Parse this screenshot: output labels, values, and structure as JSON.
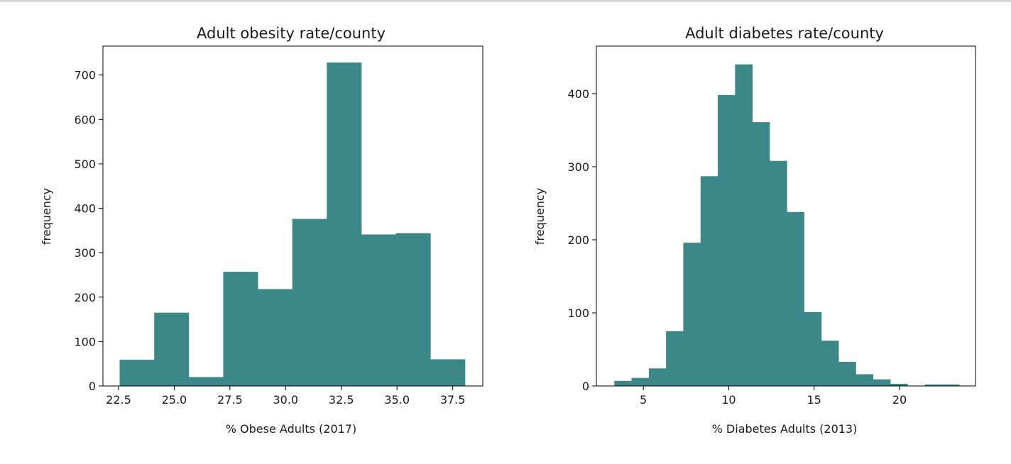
{
  "chart_data": [
    {
      "type": "bar",
      "title": "Adult obesity rate/county",
      "xlabel": "% Obese Adults (2017)",
      "ylabel": "frequency",
      "color": "#3c8787",
      "xlim": [
        21.8,
        38.85
      ],
      "ylim": [
        0,
        765
      ],
      "xticks": [
        "22.5",
        "25.0",
        "27.5",
        "30.0",
        "32.5",
        "35.0",
        "37.5"
      ],
      "yticks": [
        "0",
        "100",
        "200",
        "300",
        "400",
        "500",
        "600",
        "700"
      ],
      "bin_edges": [
        22.55,
        24.1,
        25.65,
        27.2,
        28.75,
        30.3,
        31.85,
        33.4,
        34.95,
        36.5,
        38.05
      ],
      "values": [
        59,
        165,
        20,
        257,
        218,
        376,
        728,
        341,
        344,
        60
      ]
    },
    {
      "type": "bar",
      "title": "Adult diabetes rate/county",
      "xlabel": "% Diabetes Adults (2013)",
      "ylabel": "frequency",
      "color": "#3c8787",
      "xlim": [
        2.25,
        24.45
      ],
      "ylim": [
        0,
        465
      ],
      "xticks": [
        "5",
        "10",
        "15",
        "20"
      ],
      "yticks": [
        "0",
        "100",
        "200",
        "300",
        "400"
      ],
      "bin_edges": [
        3.3,
        4.31,
        5.32,
        6.33,
        7.34,
        8.35,
        9.36,
        10.37,
        11.38,
        12.39,
        13.4,
        14.41,
        15.42,
        16.43,
        17.44,
        18.45,
        19.46,
        20.47,
        21.48,
        22.49,
        23.5
      ],
      "values": [
        7,
        11,
        24,
        75,
        196,
        287,
        398,
        440,
        361,
        308,
        238,
        101,
        62,
        33,
        16,
        9,
        3,
        0,
        2,
        2
      ]
    }
  ]
}
